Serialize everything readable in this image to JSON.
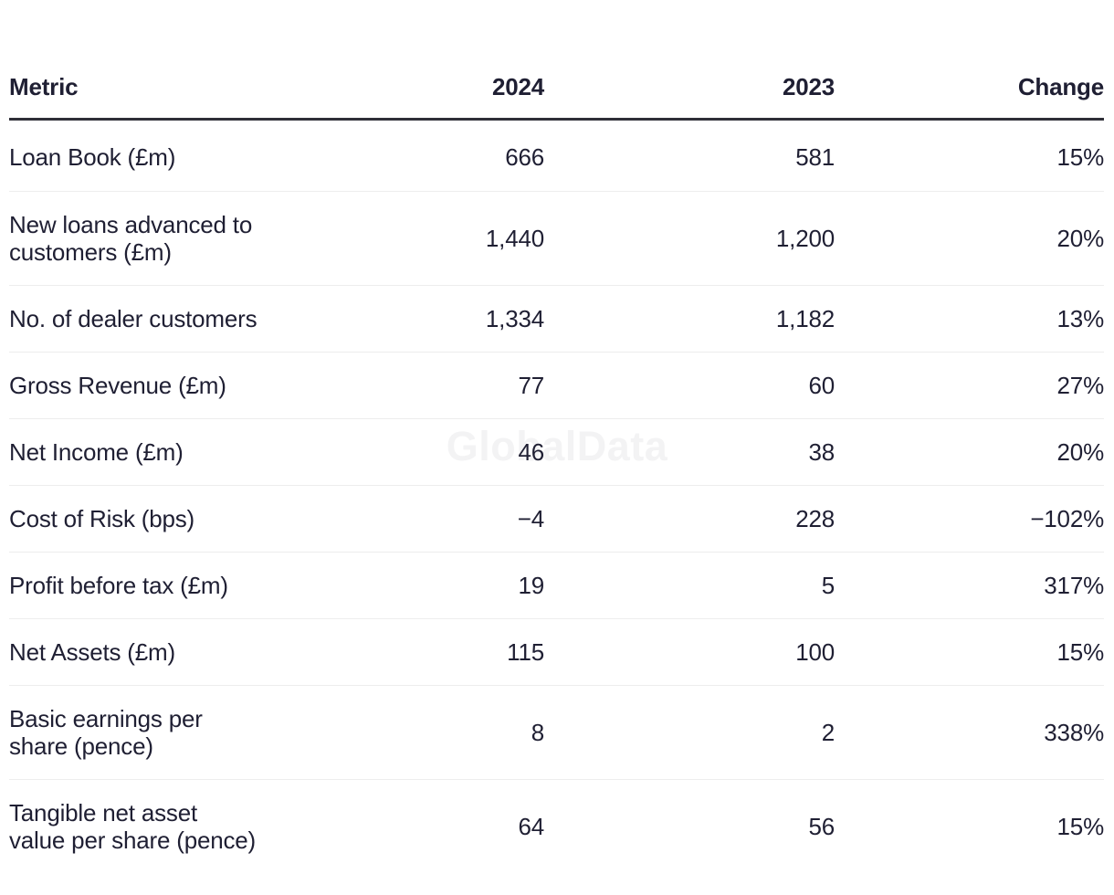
{
  "chart_data": {
    "type": "table",
    "columns": [
      "Metric",
      "2024",
      "2023",
      "Change"
    ],
    "rows": [
      [
        "Loan Book (£m)",
        "666",
        "581",
        "15%"
      ],
      [
        "New loans advanced to\ncustomers (£m)",
        "1,440",
        "1,200",
        "20%"
      ],
      [
        "No. of dealer customers",
        "1,334",
        "1,182",
        "13%"
      ],
      [
        "Gross Revenue (£m)",
        "77",
        "60",
        "27%"
      ],
      [
        "Net Income (£m)",
        "46",
        "38",
        "20%"
      ],
      [
        "Cost of Risk (bps)",
        "−4",
        "228",
        "−102%"
      ],
      [
        "Profit before tax (£m)",
        "19",
        "5",
        "317%"
      ],
      [
        "Net Assets (£m)",
        "115",
        "100",
        "15%"
      ],
      [
        "Basic earnings per\nshare (pence)",
        "8",
        "2",
        "338%"
      ],
      [
        "Tangible net asset\nvalue per share (pence)",
        "64",
        "56",
        "15%"
      ]
    ]
  },
  "watermark": {
    "text": "GlobalData"
  },
  "colors": {
    "text": "#1f1f33",
    "heavy_rule": "#2f2f38",
    "light_rule": "#ededed",
    "watermark": "#f3f3f4",
    "background": "#ffffff"
  }
}
